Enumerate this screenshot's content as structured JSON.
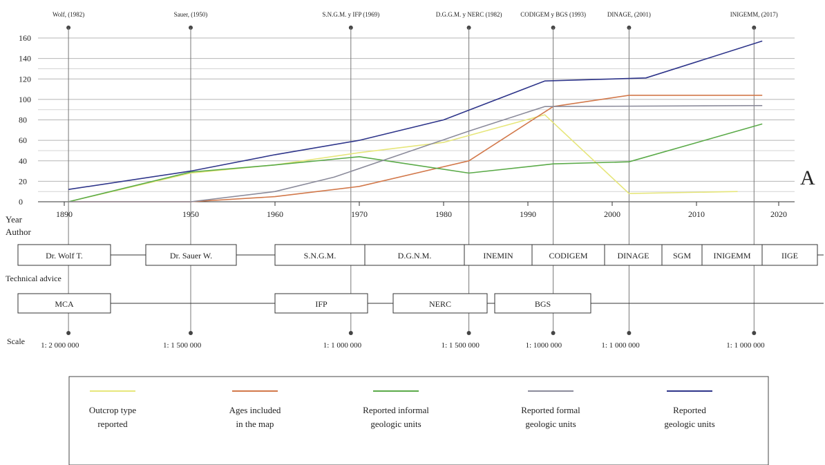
{
  "chart_data": {
    "type": "line",
    "title": "",
    "xlabel": "Year",
    "ylabel": "",
    "panel_letter": "A",
    "xlim": [
      1878,
      2026
    ],
    "ylim": [
      0,
      160
    ],
    "x_ticks": [
      {
        "value": 1890,
        "label": "1890"
      },
      {
        "value": 1950,
        "label": "1950"
      },
      {
        "value": 1960,
        "label": "1960"
      },
      {
        "value": 1970,
        "label": "1970"
      },
      {
        "value": 1980,
        "label": "1980"
      },
      {
        "value": 1990,
        "label": "1990"
      },
      {
        "value": 2000,
        "label": "2000"
      },
      {
        "value": 2010,
        "label": "2010"
      },
      {
        "value": 2020,
        "label": "2020"
      }
    ],
    "y_ticks": [
      0,
      20,
      40,
      60,
      80,
      100,
      120,
      140,
      160
    ],
    "grid": "horizontal",
    "legend_position": "bottom",
    "series": [
      {
        "name": "Outcrop type reported",
        "color": "#e6e67a",
        "points": [
          [
            1892,
            0
          ],
          [
            1950,
            28
          ],
          [
            1960,
            36
          ],
          [
            1970,
            48
          ],
          [
            1980,
            58
          ],
          [
            1992,
            85
          ],
          [
            2002,
            8
          ],
          [
            2015,
            10
          ]
        ]
      },
      {
        "name": "Ages included in the map",
        "color": "#d2784a",
        "points": [
          [
            1892,
            0
          ],
          [
            1950,
            0
          ],
          [
            1960,
            5
          ],
          [
            1970,
            15
          ],
          [
            1983,
            40
          ],
          [
            1993,
            93
          ],
          [
            2002,
            104
          ],
          [
            2018,
            104
          ]
        ]
      },
      {
        "name": "Reported informal geologic units",
        "color": "#5aaa48",
        "points": [
          [
            1892,
            0
          ],
          [
            1950,
            29
          ],
          [
            1960,
            36
          ],
          [
            1970,
            44
          ],
          [
            1983,
            28
          ],
          [
            1993,
            37
          ],
          [
            2002,
            39
          ],
          [
            2018,
            76
          ]
        ]
      },
      {
        "name": "Reported formal geologic units",
        "color": "#8a8a9a",
        "points": [
          [
            1892,
            0
          ],
          [
            1950,
            0
          ],
          [
            1960,
            10
          ],
          [
            1967,
            24
          ],
          [
            1983,
            69
          ],
          [
            1992,
            93
          ],
          [
            2018,
            94
          ]
        ]
      },
      {
        "name": "Reported geologic units",
        "color": "#2e358a",
        "points": [
          [
            1892,
            12
          ],
          [
            1950,
            30
          ],
          [
            1960,
            46
          ],
          [
            1970,
            60
          ],
          [
            1980,
            80
          ],
          [
            1992,
            118
          ],
          [
            2004,
            121
          ],
          [
            2018,
            157
          ]
        ]
      }
    ],
    "publications": [
      {
        "label": "Wolf, (1982)",
        "year": 1892,
        "scale": "1: 2 000 000"
      },
      {
        "label": "Sauer, (1950)",
        "year": 1950,
        "scale": "1: 1 500 000"
      },
      {
        "label": "S.N.G.M. y IFP (1969)",
        "year": 1969,
        "scale": "1: 1 000 000"
      },
      {
        "label": "D.G.G.M. y NERC (1982)",
        "year": 1983,
        "scale": "1: 1 500 000"
      },
      {
        "label": "CODIGEM y BGS (1993)",
        "year": 1993,
        "scale": "1: 1000 000"
      },
      {
        "label": "DINAGE, (2001)",
        "year": 2002,
        "scale": "1: 1 000 000"
      },
      {
        "label": "INIGEMM, (2017)",
        "year": 2017,
        "scale": "1: 1 000 000"
      }
    ],
    "row_labels": {
      "year": "Year",
      "author": "Author",
      "technical_advice": "Technical advice",
      "scale": "Scale"
    },
    "authors": [
      {
        "label": "Dr. Wolf T."
      },
      {
        "label": "Dr. Sauer W."
      },
      {
        "label": "S.N.G.M."
      },
      {
        "label": "D.G.N.M."
      },
      {
        "label": "INEMIN"
      },
      {
        "label": "CODIGEM"
      },
      {
        "label": "DINAGE"
      },
      {
        "label": "SGM"
      },
      {
        "label": "INIGEMM"
      },
      {
        "label": "IIGE"
      }
    ],
    "technical_advice": [
      {
        "label": "MCA"
      },
      {
        "label": "IFP"
      },
      {
        "label": "NERC"
      },
      {
        "label": "BGS"
      }
    ],
    "legend": [
      {
        "label_lines": [
          "Outcrop type",
          "reported"
        ],
        "color": "#e6e67a"
      },
      {
        "label_lines": [
          "Ages included",
          "in the map"
        ],
        "color": "#d2784a"
      },
      {
        "label_lines": [
          "Reported informal",
          "geologic units"
        ],
        "color": "#5aaa48"
      },
      {
        "label_lines": [
          "Reported formal",
          "geologic units"
        ],
        "color": "#8a8a9a"
      },
      {
        "label_lines": [
          "Reported",
          "geologic units"
        ],
        "color": "#2e358a"
      }
    ]
  }
}
